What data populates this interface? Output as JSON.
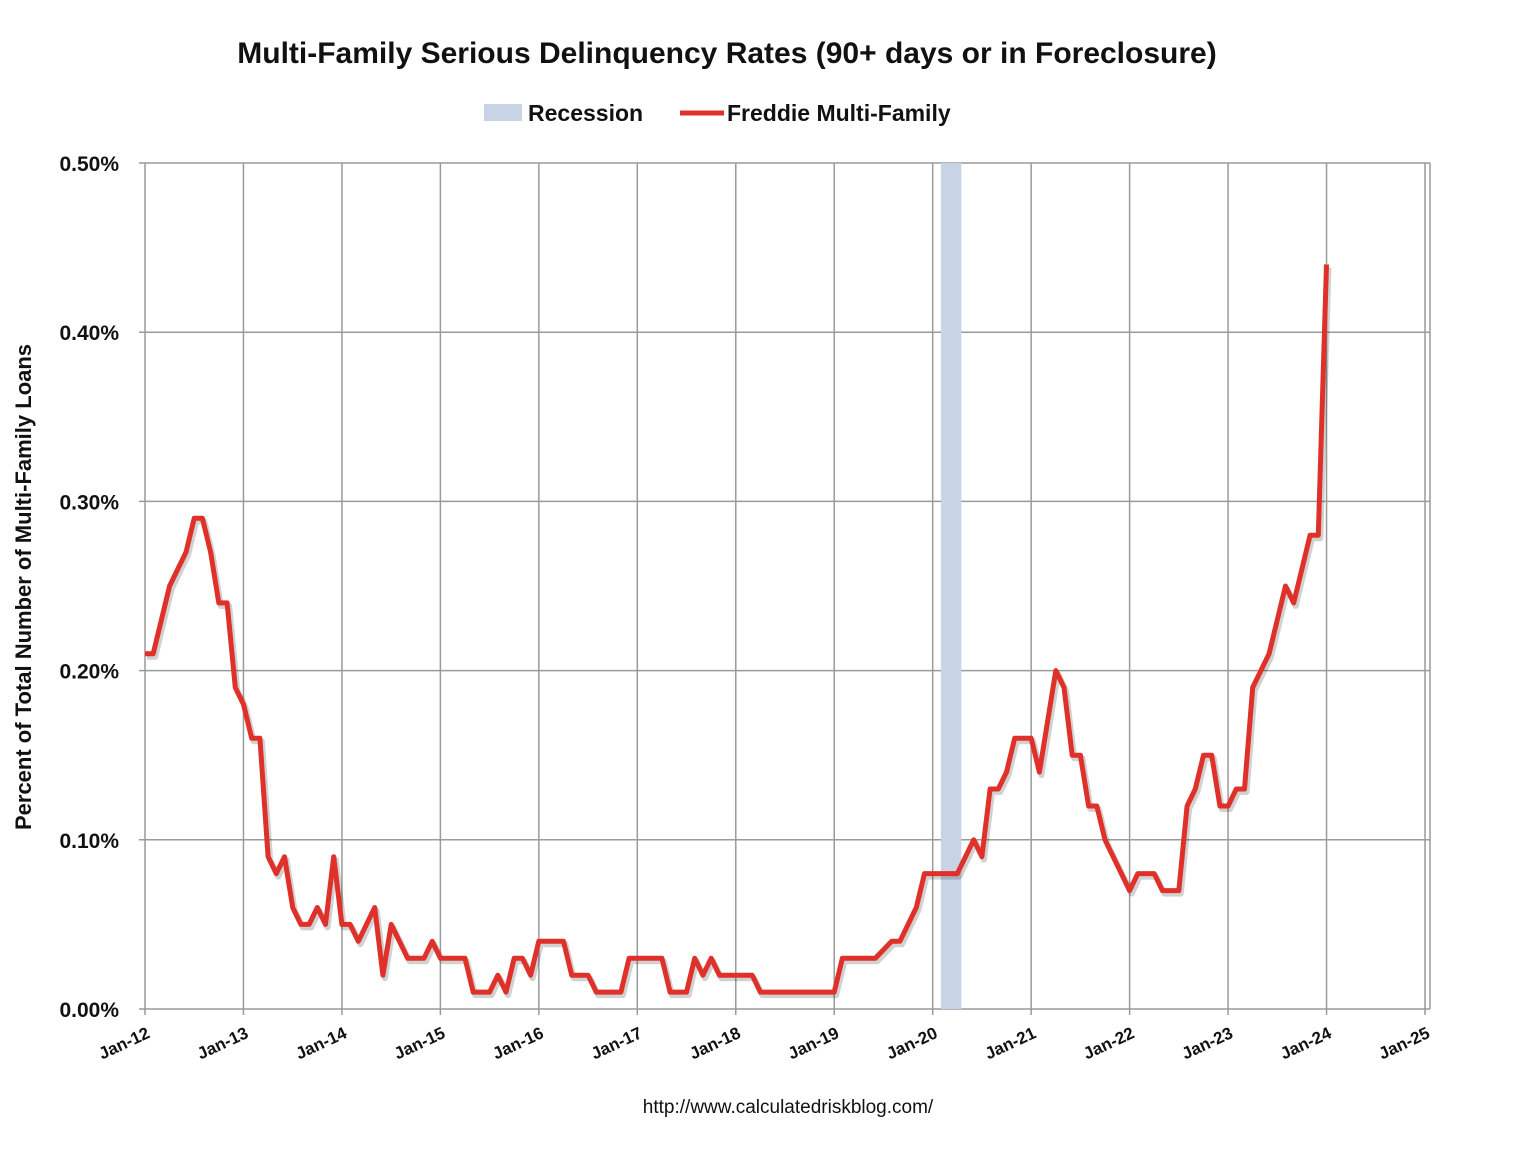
{
  "chart_data": {
    "type": "line",
    "title": "Multi-Family Serious Delinquency Rates (90+ days or in Foreclosure)",
    "ylabel": "Percent of Total Number of Multi-Family Loans",
    "xlabel": "",
    "source": "http://www.calculatedriskblog.com/",
    "ylim": [
      0,
      0.5
    ],
    "xlim": [
      "2012-01",
      "2025-01"
    ],
    "grid": true,
    "legend_placement": "top",
    "y_ticks": [
      "0.00%",
      "0.10%",
      "0.20%",
      "0.30%",
      "0.40%",
      "0.50%"
    ],
    "y_tick_values": [
      0,
      0.1,
      0.2,
      0.3,
      0.4,
      0.5
    ],
    "x_ticks": [
      "Jan-12",
      "Jan-13",
      "Jan-14",
      "Jan-15",
      "Jan-16",
      "Jan-17",
      "Jan-18",
      "Jan-19",
      "Jan-20",
      "Jan-21",
      "Jan-22",
      "Jan-23",
      "Jan-24",
      "Jan-25"
    ],
    "recession": {
      "name": "Recession",
      "start": "2020-02",
      "end": "2020-04",
      "color": "#c8d4e6"
    },
    "series": [
      {
        "name": "Freddie Multi-Family",
        "color": "#e0302a",
        "unit": "percent",
        "points": [
          [
            "2012-01",
            0.21
          ],
          [
            "2012-02",
            0.21
          ],
          [
            "2012-04",
            0.25
          ],
          [
            "2012-06",
            0.27
          ],
          [
            "2012-07",
            0.29
          ],
          [
            "2012-08",
            0.29
          ],
          [
            "2012-09",
            0.27
          ],
          [
            "2012-10",
            0.24
          ],
          [
            "2012-11",
            0.24
          ],
          [
            "2012-12",
            0.19
          ],
          [
            "2013-01",
            0.18
          ],
          [
            "2013-02",
            0.16
          ],
          [
            "2013-03",
            0.16
          ],
          [
            "2013-04",
            0.09
          ],
          [
            "2013-05",
            0.08
          ],
          [
            "2013-06",
            0.09
          ],
          [
            "2013-07",
            0.06
          ],
          [
            "2013-08",
            0.05
          ],
          [
            "2013-09",
            0.05
          ],
          [
            "2013-10",
            0.06
          ],
          [
            "2013-11",
            0.05
          ],
          [
            "2013-12",
            0.09
          ],
          [
            "2014-01",
            0.05
          ],
          [
            "2014-02",
            0.05
          ],
          [
            "2014-03",
            0.04
          ],
          [
            "2014-05",
            0.06
          ],
          [
            "2014-06",
            0.02
          ],
          [
            "2014-07",
            0.05
          ],
          [
            "2014-09",
            0.03
          ],
          [
            "2014-11",
            0.03
          ],
          [
            "2014-12",
            0.04
          ],
          [
            "2015-01",
            0.03
          ],
          [
            "2015-04",
            0.03
          ],
          [
            "2015-05",
            0.01
          ],
          [
            "2015-07",
            0.01
          ],
          [
            "2015-08",
            0.02
          ],
          [
            "2015-09",
            0.01
          ],
          [
            "2015-10",
            0.03
          ],
          [
            "2015-11",
            0.03
          ],
          [
            "2015-12",
            0.02
          ],
          [
            "2016-01",
            0.04
          ],
          [
            "2016-04",
            0.04
          ],
          [
            "2016-05",
            0.02
          ],
          [
            "2016-07",
            0.02
          ],
          [
            "2016-08",
            0.01
          ],
          [
            "2016-11",
            0.01
          ],
          [
            "2016-12",
            0.03
          ],
          [
            "2017-04",
            0.03
          ],
          [
            "2017-05",
            0.01
          ],
          [
            "2017-07",
            0.01
          ],
          [
            "2017-08",
            0.03
          ],
          [
            "2017-09",
            0.02
          ],
          [
            "2017-10",
            0.03
          ],
          [
            "2017-11",
            0.02
          ],
          [
            "2018-03",
            0.02
          ],
          [
            "2018-04",
            0.01
          ],
          [
            "2019-01",
            0.01
          ],
          [
            "2019-02",
            0.03
          ],
          [
            "2019-06",
            0.03
          ],
          [
            "2019-08",
            0.04
          ],
          [
            "2019-09",
            0.04
          ],
          [
            "2019-11",
            0.06
          ],
          [
            "2019-12",
            0.08
          ],
          [
            "2020-04",
            0.08
          ],
          [
            "2020-06",
            0.1
          ],
          [
            "2020-07",
            0.09
          ],
          [
            "2020-08",
            0.13
          ],
          [
            "2020-09",
            0.13
          ],
          [
            "2020-10",
            0.14
          ],
          [
            "2020-11",
            0.16
          ],
          [
            "2021-01",
            0.16
          ],
          [
            "2021-02",
            0.14
          ],
          [
            "2021-04",
            0.2
          ],
          [
            "2021-05",
            0.19
          ],
          [
            "2021-06",
            0.15
          ],
          [
            "2021-07",
            0.15
          ],
          [
            "2021-08",
            0.12
          ],
          [
            "2021-09",
            0.12
          ],
          [
            "2021-10",
            0.1
          ],
          [
            "2022-01",
            0.07
          ],
          [
            "2022-02",
            0.08
          ],
          [
            "2022-04",
            0.08
          ],
          [
            "2022-05",
            0.07
          ],
          [
            "2022-07",
            0.07
          ],
          [
            "2022-08",
            0.12
          ],
          [
            "2022-09",
            0.13
          ],
          [
            "2022-10",
            0.15
          ],
          [
            "2022-11",
            0.15
          ],
          [
            "2022-12",
            0.12
          ],
          [
            "2023-01",
            0.12
          ],
          [
            "2023-02",
            0.13
          ],
          [
            "2023-03",
            0.13
          ],
          [
            "2023-04",
            0.19
          ],
          [
            "2023-06",
            0.21
          ],
          [
            "2023-08",
            0.25
          ],
          [
            "2023-09",
            0.24
          ],
          [
            "2023-10",
            0.26
          ],
          [
            "2023-11",
            0.28
          ],
          [
            "2023-12",
            0.28
          ],
          [
            "2024-01",
            0.44
          ]
        ]
      }
    ]
  }
}
